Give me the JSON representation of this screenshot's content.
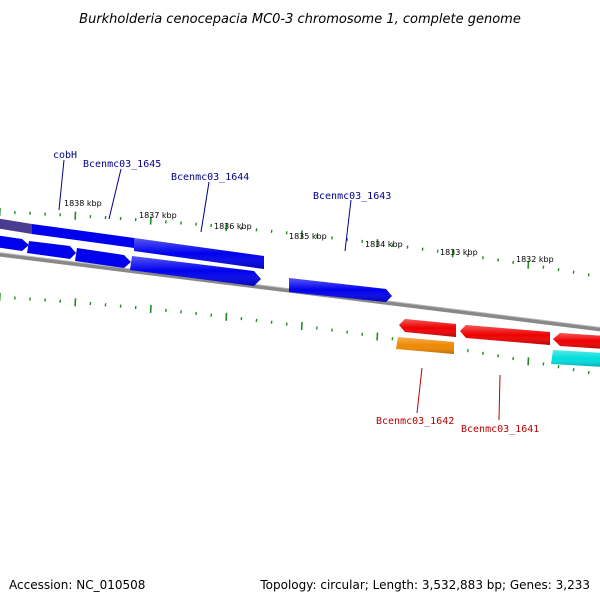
{
  "title": "Burkholderia cenocepacia MC0-3 chromosome 1, complete genome",
  "scale": {
    "labels": [
      "1838 kbp",
      "1837 kbp",
      "1836 kbp",
      "1835 kbp",
      "1834 kbp",
      "1833 kbp",
      "1832 kbp"
    ]
  },
  "genes": {
    "forward_labels": [
      "cobH",
      "Bcenmc03_1645",
      "Bcenmc03_1644",
      "Bcenmc03_1643"
    ],
    "reverse_labels": [
      "Bcenmc03_1642",
      "Bcenmc03_1641"
    ]
  },
  "colors": {
    "forward_gene": "#0000ee",
    "reverse_gene": "#ee0000",
    "orange_feature": "#ee8800",
    "cyan_feature": "#00dddd",
    "forward_label": "#00008b",
    "reverse_label": "#bb0000",
    "tick": "#228b22",
    "backbone": "#888888"
  },
  "footer": {
    "accession": "Accession: NC_010508",
    "topology": "Topology: circular; Length: 3,532,883 bp; Genes: 3,233"
  }
}
